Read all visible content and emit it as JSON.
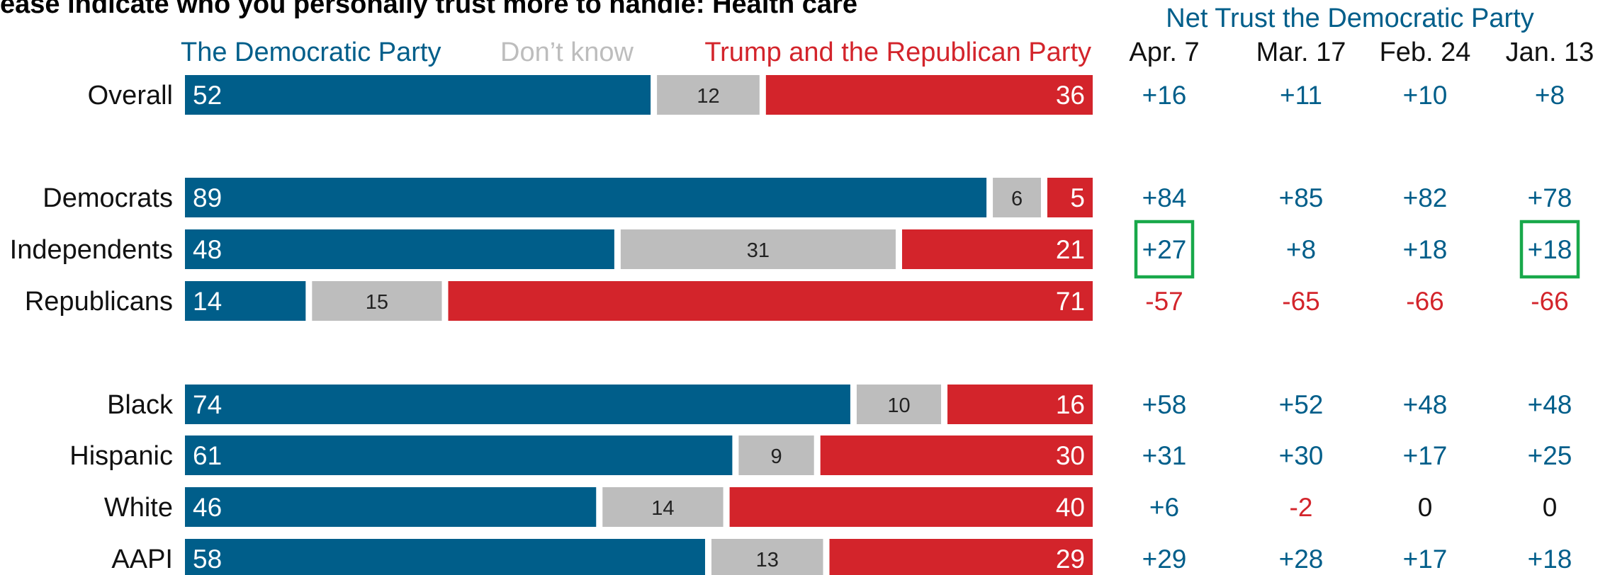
{
  "chart_data": {
    "type": "bar",
    "stacked": true,
    "orientation": "horizontal",
    "title": "ease indicate who you personally trust more to handle: Health care",
    "legend": [
      "The Democratic Party",
      "Don’t know",
      "Trump and the Republican Party"
    ],
    "legend_placement": "top",
    "grid": false,
    "xlim": [
      0,
      100
    ],
    "categories": [
      "Overall",
      "Democrats",
      "Independents",
      "Republicans",
      "Black",
      "Hispanic",
      "White",
      "AAPI"
    ],
    "series": [
      {
        "name": "The Democratic Party",
        "values": [
          52,
          89,
          48,
          14,
          74,
          61,
          46,
          58
        ]
      },
      {
        "name": "Don’t know",
        "values": [
          12,
          6,
          31,
          15,
          10,
          9,
          14,
          13
        ]
      },
      {
        "name": "Trump and the Republican Party",
        "values": [
          36,
          5,
          21,
          71,
          16,
          30,
          40,
          29
        ]
      }
    ],
    "net_table": {
      "title": "Net Trust the Democratic Party",
      "columns": [
        "Apr. 7",
        "Mar. 17",
        "Feb. 24",
        "Jan. 13"
      ],
      "rows": [
        [
          "+16",
          "+11",
          "+10",
          "+8"
        ],
        [
          "+84",
          "+85",
          "+82",
          "+78"
        ],
        [
          "+27",
          "+8",
          "+18",
          "+18"
        ],
        [
          "-57",
          "-65",
          "-66",
          "-66"
        ],
        [
          "+58",
          "+52",
          "+48",
          "+48"
        ],
        [
          "+31",
          "+30",
          "+17",
          "+25"
        ],
        [
          "+6",
          "-2",
          "0",
          "0"
        ],
        [
          "+29",
          "+28",
          "+17",
          "+18"
        ]
      ],
      "highlighted_cells": [
        [
          2,
          0
        ],
        [
          2,
          3
        ]
      ]
    },
    "colors": {
      "democratic": "#005e8a",
      "dont_know": "#bdbdbd",
      "republican": "#d3242b",
      "positive_text": "#005e8a",
      "negative_text": "#d3242b",
      "zero_text": "#111111",
      "highlight_box": "#18a84a",
      "dont_know_label": "#bdbdbd"
    }
  }
}
